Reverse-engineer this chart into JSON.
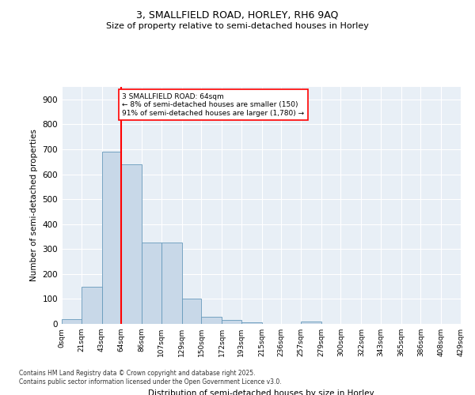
{
  "title": "3, SMALLFIELD ROAD, HORLEY, RH6 9AQ",
  "subtitle": "Size of property relative to semi-detached houses in Horley",
  "xlabel": "Distribution of semi-detached houses by size in Horley",
  "ylabel": "Number of semi-detached properties",
  "footer_line1": "Contains HM Land Registry data © Crown copyright and database right 2025.",
  "footer_line2": "Contains public sector information licensed under the Open Government Licence v3.0.",
  "annotation_line1": "3 SMALLFIELD ROAD: 64sqm",
  "annotation_line2": "← 8% of semi-detached houses are smaller (150)",
  "annotation_line3": "91% of semi-detached houses are larger (1,780) →",
  "property_size": 64,
  "bin_edges": [
    0,
    21,
    43,
    64,
    86,
    107,
    129,
    150,
    172,
    193,
    215,
    236,
    257,
    279,
    300,
    322,
    343,
    365,
    386,
    408,
    429
  ],
  "bar_heights": [
    20,
    150,
    690,
    640,
    325,
    325,
    100,
    30,
    15,
    5,
    0,
    0,
    10,
    0,
    0,
    0,
    0,
    0,
    0,
    0
  ],
  "bar_color": "#c8d8e8",
  "bar_edge_color": "#6699bb",
  "vline_color": "red",
  "annotation_box_color": "red",
  "background_color": "#e8eff6",
  "ylim": [
    0,
    950
  ],
  "yticks": [
    0,
    100,
    200,
    300,
    400,
    500,
    600,
    700,
    800,
    900
  ]
}
